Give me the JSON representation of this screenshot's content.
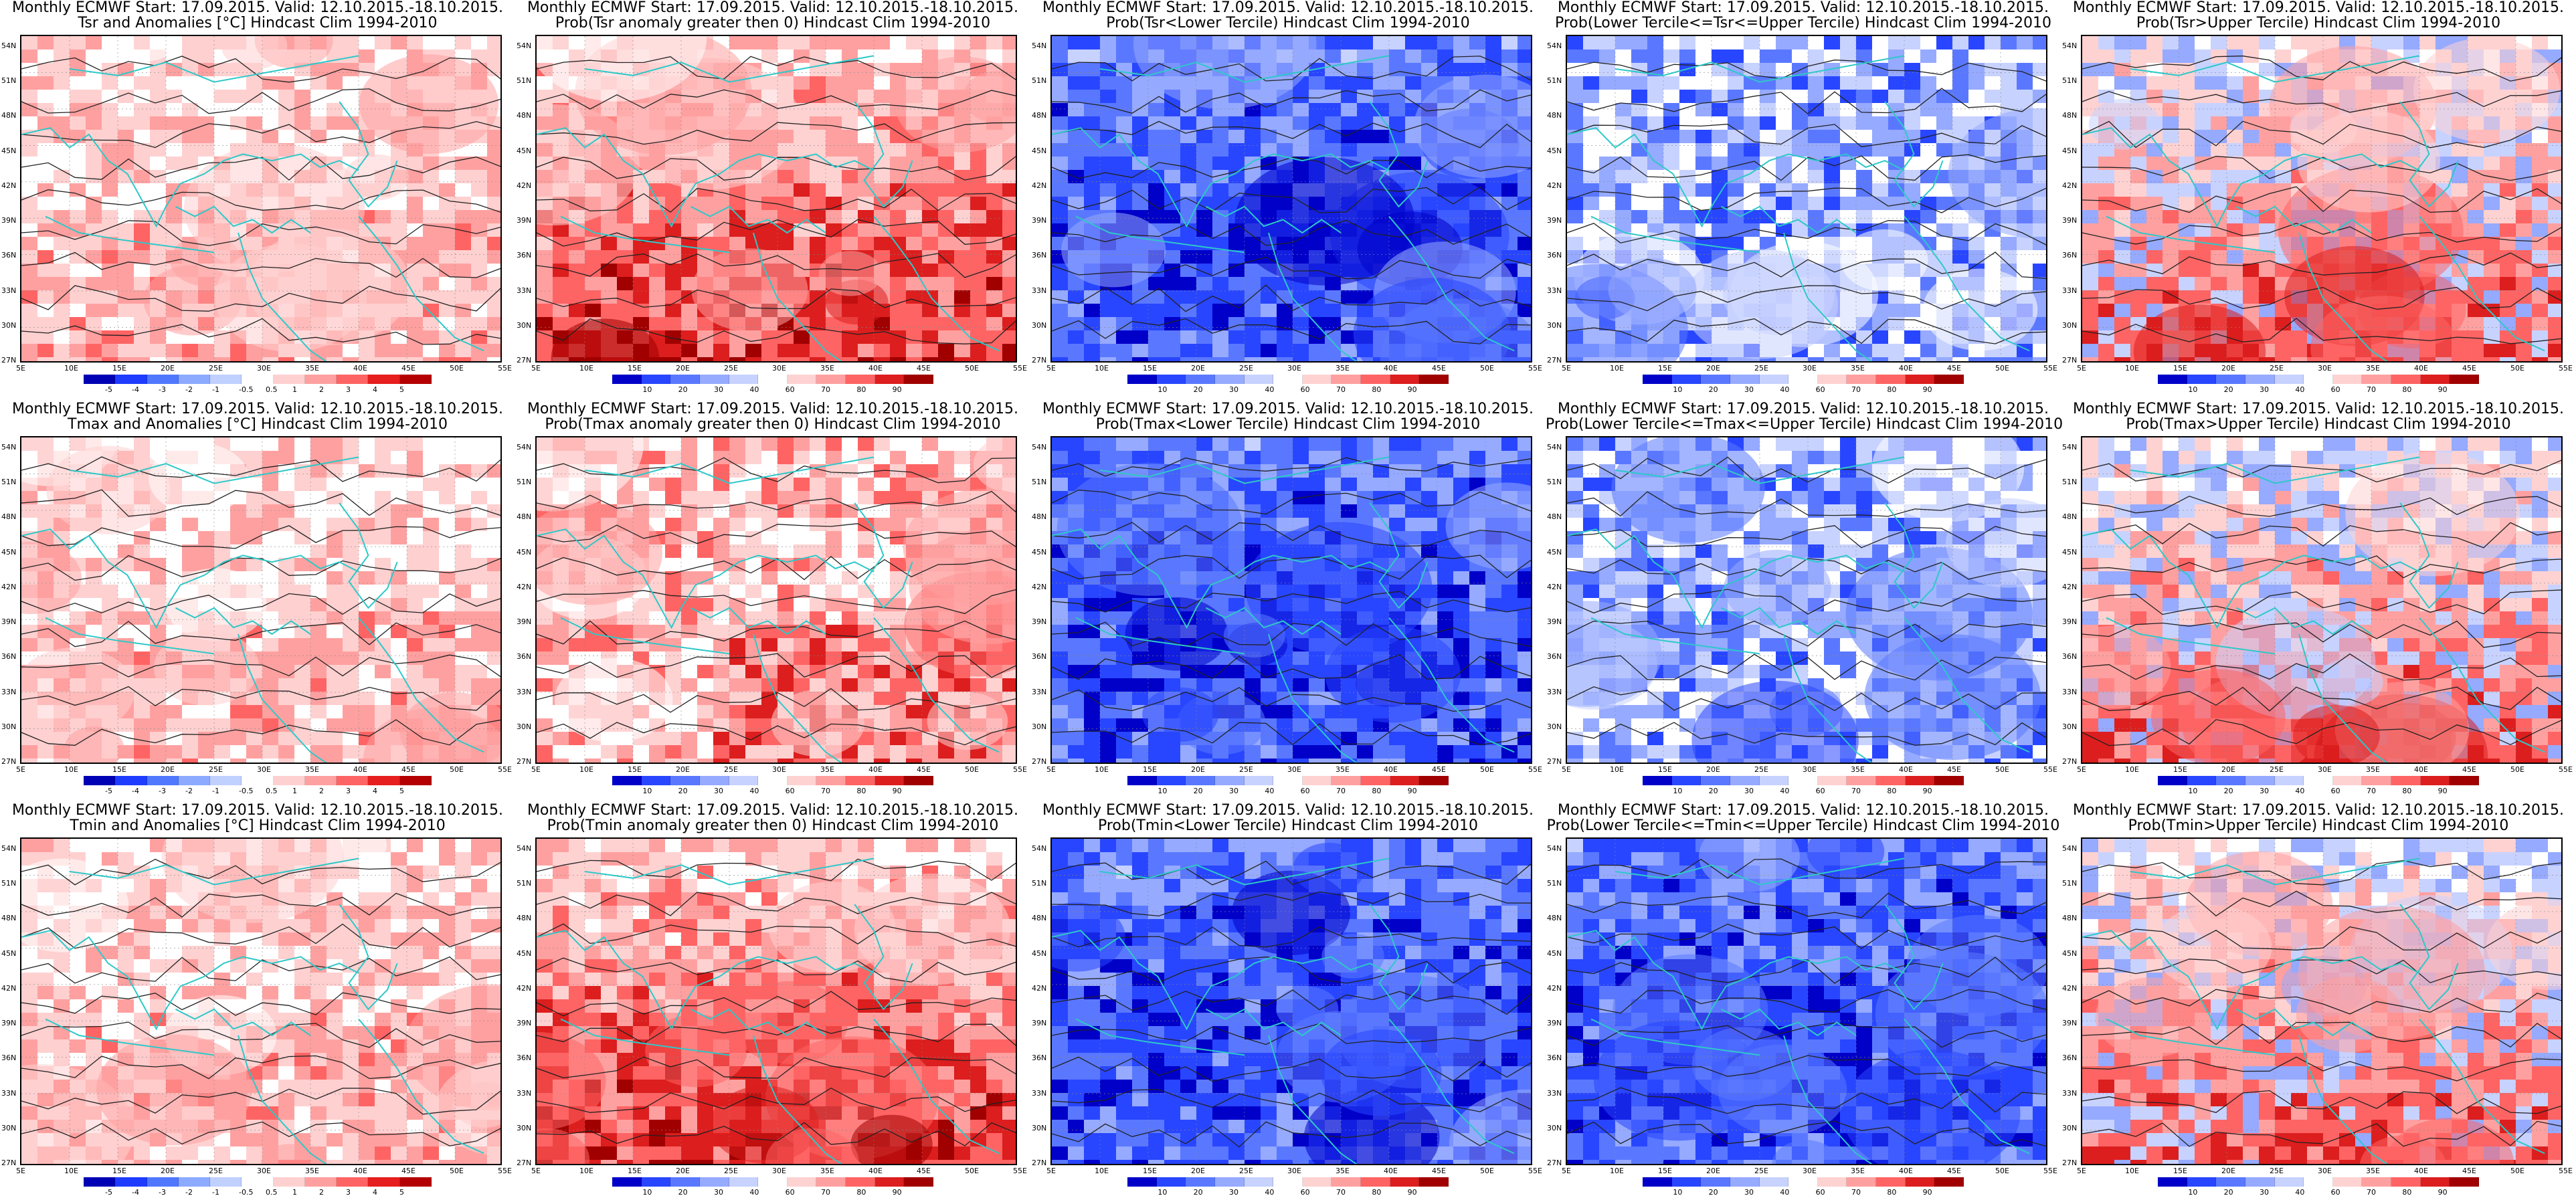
{
  "figure": {
    "lat_labels": [
      "54N",
      "51N",
      "48N",
      "45N",
      "42N",
      "39N",
      "36N",
      "33N",
      "30N",
      "27N"
    ],
    "lon_labels": [
      "5E",
      "10E",
      "15E",
      "20E",
      "25E",
      "30E",
      "35E",
      "40E",
      "45E",
      "50E",
      "55E"
    ]
  },
  "colors": {
    "anomaly_scale": [
      "#0000b4",
      "#1e3cff",
      "#5078ff",
      "#8caaff",
      "#c0d0ff",
      "#ffffff",
      "#ffd0d0",
      "#ffa0a0",
      "#ff6464",
      "#e61e1e",
      "#b40000"
    ],
    "probability_scale": [
      "#0000c8",
      "#2846ff",
      "#5a78ff",
      "#96aaff",
      "#c8d2ff",
      "#ffffff",
      "#ffd2d2",
      "#ffa0a0",
      "#ff6464",
      "#dc1e1e",
      "#a00000"
    ],
    "coastline": "#2ec8c8",
    "contour": "#222222"
  },
  "colorbars": {
    "anomaly": [
      "-5",
      "-4",
      "-3",
      "-2",
      "-1",
      "-0.5",
      "0.5",
      "1",
      "2",
      "3",
      "4",
      "5"
    ],
    "probability": [
      "10",
      "20",
      "30",
      "40",
      "60",
      "70",
      "80",
      "90"
    ]
  },
  "panels": [
    {
      "title1": "Monthly ECMWF Start: 17.09.2015. Valid: 12.10.2015.-18.10.2015.",
      "title2": "Tsr and Anomalies [°C] Hindcast Clim 1994-2010",
      "kind": "anomaly",
      "tone": "warm-light"
    },
    {
      "title1": "Monthly ECMWF Start: 17.09.2015. Valid: 12.10.2015.-18.10.2015.",
      "title2": "Prob(Tsr anomaly greater then 0) Hindcast Clim 1994-2010",
      "kind": "probability",
      "tone": "warm-strong"
    },
    {
      "title1": "Monthly ECMWF Start: 17.09.2015. Valid: 12.10.2015.-18.10.2015.",
      "title2": "Prob(Tsr<Lower Tercile) Hindcast Clim 1994-2010",
      "kind": "probability",
      "tone": "cold-strong"
    },
    {
      "title1": "Monthly ECMWF Start: 17.09.2015. Valid: 12.10.2015.-18.10.2015.",
      "title2": "Prob(Lower Tercile<=Tsr<=Upper Tercile) Hindcast Clim 1994-2010",
      "kind": "probability",
      "tone": "cold-mixed"
    },
    {
      "title1": "Monthly ECMWF Start: 17.09.2015. Valid: 12.10.2015.-18.10.2015.",
      "title2": "Prob(Tsr>Upper Tercile) Hindcast Clim 1994-2010",
      "kind": "probability",
      "tone": "warm-mixed"
    },
    {
      "title1": "Monthly ECMWF Start: 17.09.2015. Valid: 12.10.2015.-18.10.2015.",
      "title2": "Tmax and Anomalies [°C] Hindcast Clim 1994-2010",
      "kind": "anomaly",
      "tone": "warm-light"
    },
    {
      "title1": "Monthly ECMWF Start: 17.09.2015. Valid: 12.10.2015.-18.10.2015.",
      "title2": "Prob(Tmax anomaly greater then 0) Hindcast Clim 1994-2010",
      "kind": "probability",
      "tone": "warm-medium"
    },
    {
      "title1": "Monthly ECMWF Start: 17.09.2015. Valid: 12.10.2015.-18.10.2015.",
      "title2": "Prob(Tmax<Lower Tercile) Hindcast Clim 1994-2010",
      "kind": "probability",
      "tone": "cold-strong"
    },
    {
      "title1": "Monthly ECMWF Start: 17.09.2015. Valid: 12.10.2015.-18.10.2015.",
      "title2": "Prob(Lower Tercile<=Tmax<=Upper Tercile) Hindcast Clim 1994-2010",
      "kind": "probability",
      "tone": "cold-mixed"
    },
    {
      "title1": "Monthly ECMWF Start: 17.09.2015. Valid: 12.10.2015.-18.10.2015.",
      "title2": "Prob(Tmax>Upper Tercile) Hindcast Clim 1994-2010",
      "kind": "probability",
      "tone": "warm-mixed"
    },
    {
      "title1": "Monthly ECMWF Start: 17.09.2015. Valid: 12.10.2015.-18.10.2015.",
      "title2": "Tmin and Anomalies [°C] Hindcast Clim 1994-2010",
      "kind": "anomaly",
      "tone": "warm-light"
    },
    {
      "title1": "Monthly ECMWF Start: 17.09.2015. Valid: 12.10.2015.-18.10.2015.",
      "title2": "Prob(Tmin anomaly greater then 0) Hindcast Clim 1994-2010",
      "kind": "probability",
      "tone": "warm-strong"
    },
    {
      "title1": "Monthly ECMWF Start: 17.09.2015. Valid: 12.10.2015.-18.10.2015.",
      "title2": "Prob(Tmin<Lower Tercile) Hindcast Clim 1994-2010",
      "kind": "probability",
      "tone": "cold-strong"
    },
    {
      "title1": "Monthly ECMWF Start: 17.09.2015. Valid: 12.10.2015.-18.10.2015.",
      "title2": "Prob(Lower Tercile<=Tmin<=Upper Tercile) Hindcast Clim 1994-2010",
      "kind": "probability",
      "tone": "cold-strong"
    },
    {
      "title1": "Monthly ECMWF Start: 17.09.2015. Valid: 12.10.2015.-18.10.2015.",
      "title2": "Prob(Tmin>Upper Tercile) Hindcast Clim 1994-2010",
      "kind": "probability",
      "tone": "warm-mixed"
    }
  ]
}
